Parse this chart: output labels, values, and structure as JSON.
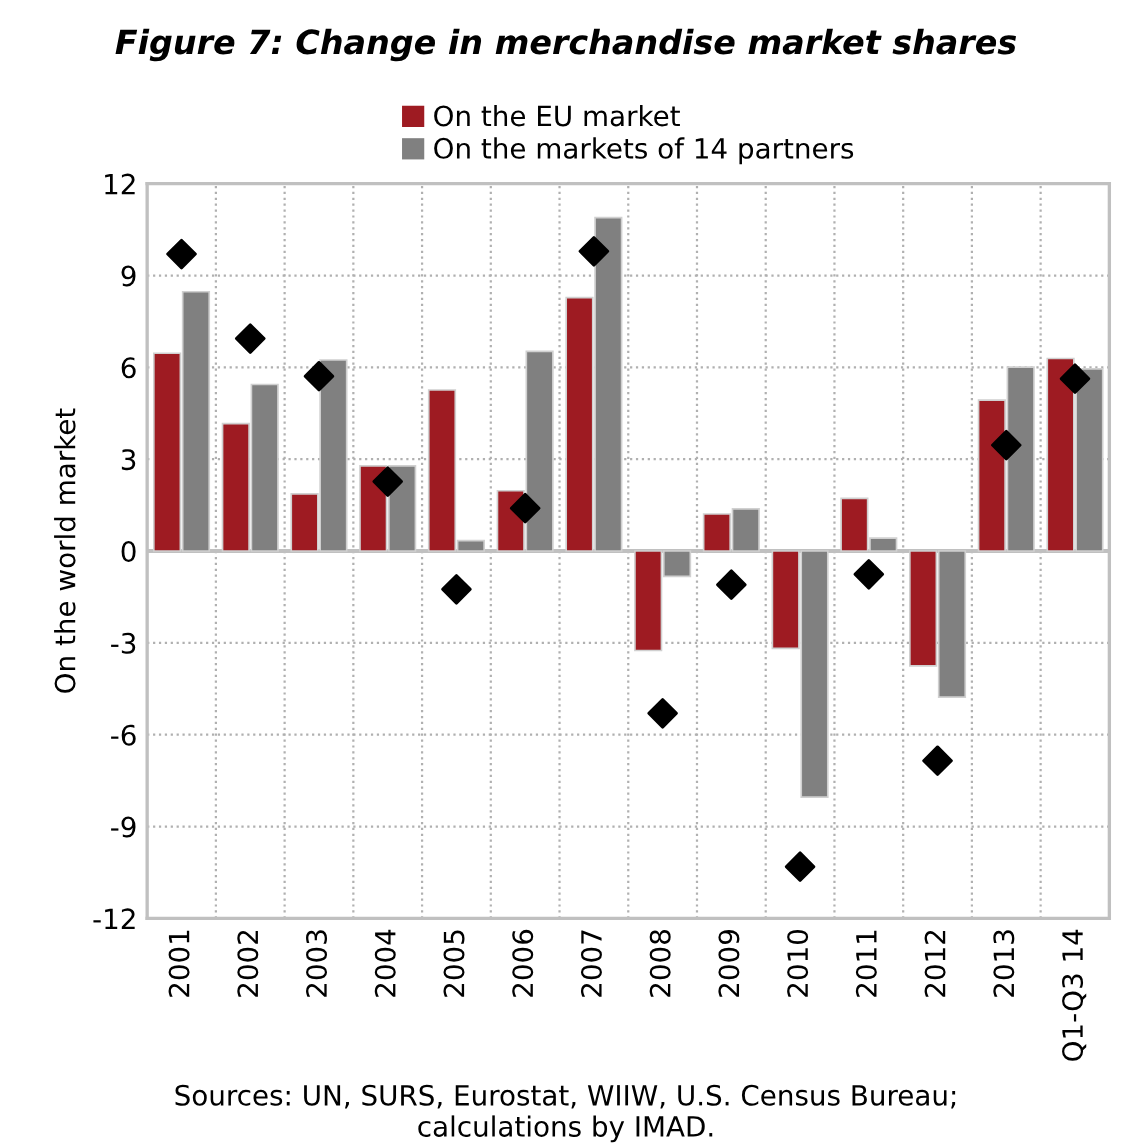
{
  "chart_data": {
    "type": "bar",
    "title": "Figure 7: Change in merchandise market shares",
    "ylabel": "On the world market",
    "categories": [
      "2001",
      "2002",
      "2003",
      "2004",
      "2005",
      "2006",
      "2007",
      "2008",
      "2009",
      "2010",
      "2011",
      "2012",
      "2013",
      "Q1-Q3 14"
    ],
    "series": [
      {
        "name": "On the EU market",
        "color": "#9e1b22",
        "values": [
          6.46,
          4.16,
          1.87,
          2.78,
          5.26,
          1.97,
          8.28,
          -3.25,
          1.21,
          -3.18,
          1.72,
          -3.75,
          4.93,
          6.29
        ]
      },
      {
        "name": "On the markets of 14 partners",
        "color": "#808080",
        "values": [
          8.47,
          5.44,
          6.24,
          2.78,
          0.34,
          6.52,
          10.89,
          -0.83,
          1.38,
          -8.04,
          0.42,
          -4.77,
          6.01,
          5.95
        ]
      },
      {
        "type": "scatter",
        "color": "#000000",
        "marker": "diamond",
        "values": [
          9.7,
          6.94,
          5.71,
          2.27,
          -1.25,
          1.4,
          9.79,
          -5.3,
          -1.1,
          -10.31,
          -0.76,
          -6.85,
          3.46,
          5.63
        ]
      }
    ],
    "ylim": [
      -12,
      12
    ],
    "yticks": [
      -12,
      -9,
      -6,
      -3,
      0,
      3,
      6,
      9,
      12
    ],
    "grid": true,
    "legend": "top",
    "annotations": [
      "Sources: UN, SURS, Eurostat, WIIW, U.S. Census Bureau; calculations by IMAD."
    ]
  }
}
